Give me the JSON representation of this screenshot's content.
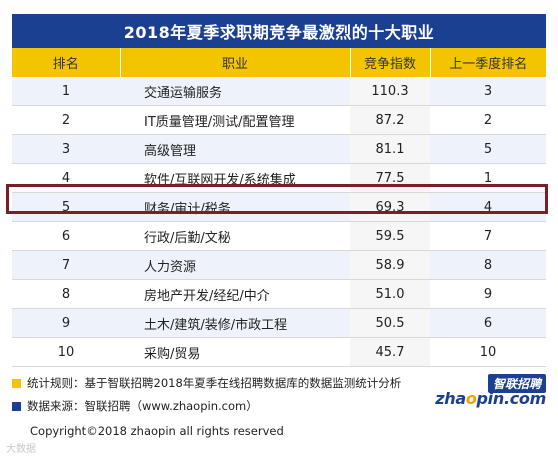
{
  "title": "2018年夏季求职期竞争最激烈的十大职业",
  "table": {
    "headers": [
      "排名",
      "职业",
      "竞争指数",
      "上一季度排名"
    ],
    "rows": [
      {
        "rank": "1",
        "job": "交通运输服务",
        "index": "110.3",
        "prev": "3"
      },
      {
        "rank": "2",
        "job": "IT质量管理/测试/配置管理",
        "index": "87.2",
        "prev": "2"
      },
      {
        "rank": "3",
        "job": "高级管理",
        "index": "81.1",
        "prev": "5"
      },
      {
        "rank": "4",
        "job": "软件/互联网开发/系统集成",
        "index": "77.5",
        "prev": "1"
      },
      {
        "rank": "5",
        "job": "财务/审计/税务",
        "index": "69.3",
        "prev": "4"
      },
      {
        "rank": "6",
        "job": "行政/后勤/文秘",
        "index": "59.5",
        "prev": "7"
      },
      {
        "rank": "7",
        "job": "人力资源",
        "index": "58.9",
        "prev": "8"
      },
      {
        "rank": "8",
        "job": "房地产开发/经纪/中介",
        "index": "51.0",
        "prev": "9"
      },
      {
        "rank": "9",
        "job": "土木/建筑/装修/市政工程",
        "index": "50.5",
        "prev": "6"
      },
      {
        "rank": "10",
        "job": "采购/贸易",
        "index": "45.7",
        "prev": "10"
      }
    ],
    "highlighted_rank": "5"
  },
  "notes": {
    "stat_rule": "统计规则：基于智联招聘2018年夏季在线招聘数据库的数据监测统计分析",
    "source": "数据来源：智联招聘（www.zhaopin.com）"
  },
  "logo": {
    "cn": "智联招聘",
    "en_pre": "zha",
    "en_o": "o",
    "en_post": "pin.com"
  },
  "copyright": "Copyright©2018 zhaopin all rights reserved",
  "watermark": "大数据",
  "colors": {
    "header_blue": "#1b3f91",
    "header_yellow": "#f2c500",
    "highlight_border": "#7b1e2a",
    "alt_row": "#eef3fb"
  }
}
